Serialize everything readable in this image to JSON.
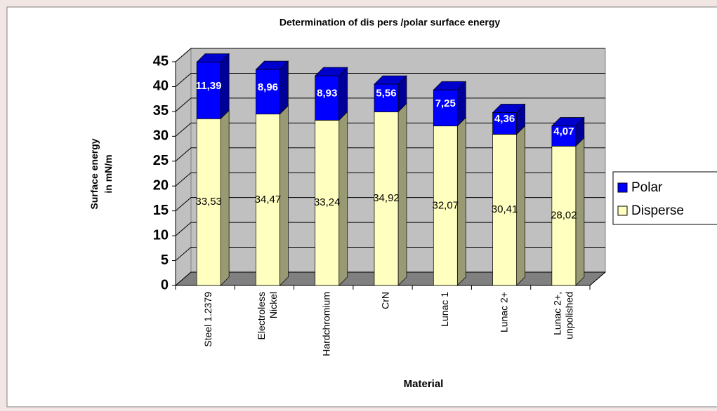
{
  "chart_data": {
    "type": "bar3d_stacked",
    "title": "Determination of dis pers /polar surface energy",
    "ylabel": "Surface energy\nin mN/m",
    "xlabel": "Material",
    "categories": [
      "Steel 1.2379",
      "Electroless\nNickel",
      "Hardchromium",
      "CrN",
      "Lunac 1",
      "Lunac 2+",
      "Lunac 2+,\nunpolished"
    ],
    "series": [
      {
        "name": "Disperse",
        "color": "#ffffc0",
        "values": [
          33.53,
          34.47,
          33.24,
          34.92,
          32.07,
          30.41,
          28.02
        ],
        "value_labels": [
          "33,53",
          "34,47",
          "33,24",
          "34,92",
          "32,07",
          "30,41",
          "28,02"
        ]
      },
      {
        "name": "Polar",
        "color": "#0000ff",
        "values": [
          11.39,
          8.96,
          8.93,
          5.56,
          7.25,
          4.36,
          4.07
        ],
        "value_labels": [
          "11,39",
          "8,96",
          "8,93",
          "5,56",
          "7,25",
          "4,36",
          "4,07"
        ]
      }
    ],
    "ylim": [
      0,
      45
    ],
    "yticks": [
      0,
      5,
      10,
      15,
      20,
      25,
      30,
      35,
      40,
      45
    ],
    "grid": true,
    "legend": "right"
  }
}
